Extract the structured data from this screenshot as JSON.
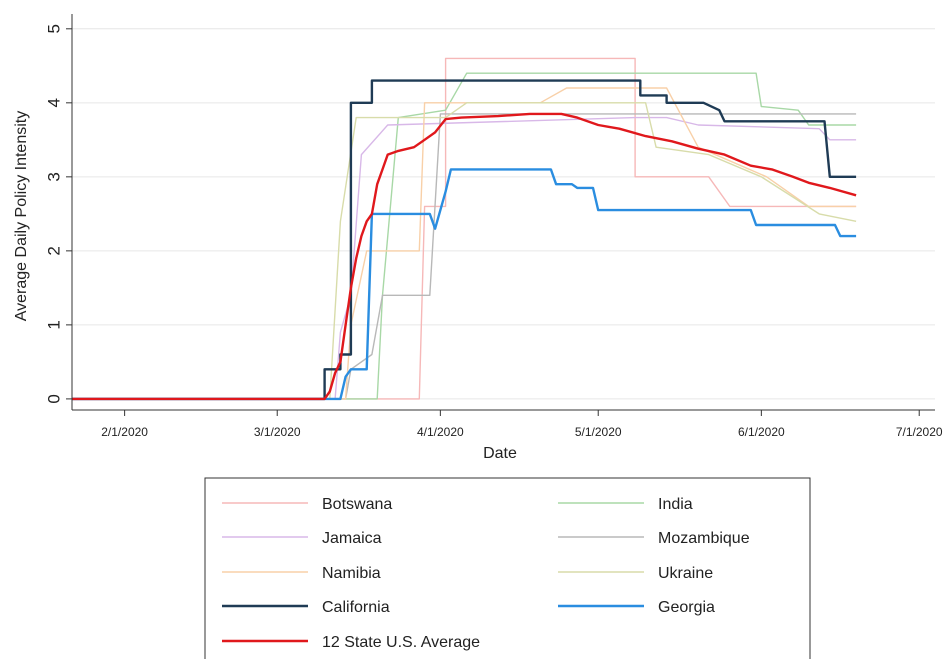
{
  "chart_data": {
    "type": "line",
    "title": "",
    "xlabel": "Date",
    "ylabel": "Average Daily Policy Intensity",
    "x_ticks": [
      "2/1/2020",
      "3/1/2020",
      "4/1/2020",
      "5/1/2020",
      "6/1/2020",
      "7/1/2020"
    ],
    "y_ticks": [
      "0",
      "1",
      "2",
      "3",
      "4",
      "5"
    ],
    "xlim": [
      "2020-01-22",
      "2020-07-04"
    ],
    "ylim": [
      -0.15,
      5.2
    ],
    "grid": "horizontal",
    "legend_position": "bottom",
    "series": [
      {
        "name": "Botswana",
        "color": "#f6b8b8",
        "width": 1.4,
        "points": [
          [
            "2020-01-22",
            0
          ],
          [
            "2020-03-28",
            0
          ],
          [
            "2020-03-29",
            2.6
          ],
          [
            "2020-04-02",
            2.6
          ],
          [
            "2020-04-02",
            4.6
          ],
          [
            "2020-05-08",
            4.6
          ],
          [
            "2020-05-08",
            3.0
          ],
          [
            "2020-05-22",
            3.0
          ],
          [
            "2020-05-26",
            2.6
          ],
          [
            "2020-06-19",
            2.6
          ]
        ]
      },
      {
        "name": "India",
        "color": "#a8d8a6",
        "width": 1.4,
        "points": [
          [
            "2020-01-22",
            0
          ],
          [
            "2020-03-20",
            0
          ],
          [
            "2020-03-21",
            1.4
          ],
          [
            "2020-03-24",
            3.8
          ],
          [
            "2020-04-02",
            3.9
          ],
          [
            "2020-04-06",
            4.4
          ],
          [
            "2020-05-31",
            4.4
          ],
          [
            "2020-06-01",
            3.95
          ],
          [
            "2020-06-08",
            3.9
          ],
          [
            "2020-06-10",
            3.7
          ],
          [
            "2020-06-19",
            3.7
          ]
        ]
      },
      {
        "name": "Jamaica",
        "color": "#d8b8e8",
        "width": 1.4,
        "points": [
          [
            "2020-01-22",
            0
          ],
          [
            "2020-03-12",
            0
          ],
          [
            "2020-03-13",
            0.9
          ],
          [
            "2020-03-15",
            1.4
          ],
          [
            "2020-03-17",
            3.3
          ],
          [
            "2020-03-22",
            3.7
          ],
          [
            "2020-05-08",
            3.8
          ],
          [
            "2020-05-14",
            3.8
          ],
          [
            "2020-05-20",
            3.7
          ],
          [
            "2020-06-12",
            3.65
          ],
          [
            "2020-06-14",
            3.5
          ],
          [
            "2020-06-19",
            3.5
          ]
        ]
      },
      {
        "name": "Mozambique",
        "color": "#b8b8b8",
        "width": 1.4,
        "points": [
          [
            "2020-01-22",
            0
          ],
          [
            "2020-03-14",
            0
          ],
          [
            "2020-03-15",
            0.4
          ],
          [
            "2020-03-19",
            0.6
          ],
          [
            "2020-03-21",
            1.4
          ],
          [
            "2020-03-30",
            1.4
          ],
          [
            "2020-04-01",
            3.85
          ],
          [
            "2020-06-19",
            3.85
          ]
        ]
      },
      {
        "name": "Namibia",
        "color": "#f8d0a8",
        "width": 1.4,
        "points": [
          [
            "2020-01-22",
            0
          ],
          [
            "2020-03-14",
            0
          ],
          [
            "2020-03-15",
            1.0
          ],
          [
            "2020-03-18",
            2.0
          ],
          [
            "2020-03-28",
            2.0
          ],
          [
            "2020-03-29",
            4.0
          ],
          [
            "2020-04-20",
            4.0
          ],
          [
            "2020-04-25",
            4.2
          ],
          [
            "2020-05-14",
            4.2
          ],
          [
            "2020-05-20",
            3.4
          ],
          [
            "2020-06-02",
            3.0
          ],
          [
            "2020-06-10",
            2.6
          ],
          [
            "2020-06-19",
            2.6
          ]
        ]
      },
      {
        "name": "Ukraine",
        "color": "#d8dcaa",
        "width": 1.4,
        "points": [
          [
            "2020-01-22",
            0
          ],
          [
            "2020-03-11",
            0
          ],
          [
            "2020-03-13",
            2.4
          ],
          [
            "2020-03-16",
            3.8
          ],
          [
            "2020-04-02",
            3.8
          ],
          [
            "2020-04-06",
            4.0
          ],
          [
            "2020-05-10",
            4.0
          ],
          [
            "2020-05-12",
            3.4
          ],
          [
            "2020-05-22",
            3.3
          ],
          [
            "2020-06-01",
            3.0
          ],
          [
            "2020-06-12",
            2.5
          ],
          [
            "2020-06-19",
            2.4
          ]
        ]
      },
      {
        "name": "California",
        "color": "#1f3b55",
        "width": 2.4,
        "points": [
          [
            "2020-01-22",
            0
          ],
          [
            "2020-03-10",
            0
          ],
          [
            "2020-03-10",
            0.4
          ],
          [
            "2020-03-13",
            0.4
          ],
          [
            "2020-03-13",
            0.6
          ],
          [
            "2020-03-15",
            0.6
          ],
          [
            "2020-03-15",
            4.0
          ],
          [
            "2020-03-19",
            4.0
          ],
          [
            "2020-03-19",
            4.3
          ],
          [
            "2020-05-09",
            4.3
          ],
          [
            "2020-05-09",
            4.1
          ],
          [
            "2020-05-14",
            4.1
          ],
          [
            "2020-05-14",
            4.0
          ],
          [
            "2020-05-21",
            4.0
          ],
          [
            "2020-05-24",
            3.9
          ],
          [
            "2020-05-25",
            3.75
          ],
          [
            "2020-06-13",
            3.75
          ],
          [
            "2020-06-14",
            3.0
          ],
          [
            "2020-06-19",
            3.0
          ]
        ]
      },
      {
        "name": "Georgia",
        "color": "#2a8de0",
        "width": 2.4,
        "points": [
          [
            "2020-01-22",
            0
          ],
          [
            "2020-03-13",
            0
          ],
          [
            "2020-03-14",
            0.3
          ],
          [
            "2020-03-15",
            0.4
          ],
          [
            "2020-03-18",
            0.4
          ],
          [
            "2020-03-19",
            2.5
          ],
          [
            "2020-03-30",
            2.5
          ],
          [
            "2020-03-31",
            2.3
          ],
          [
            "2020-04-02",
            2.8
          ],
          [
            "2020-04-03",
            3.1
          ],
          [
            "2020-04-22",
            3.1
          ],
          [
            "2020-04-23",
            2.9
          ],
          [
            "2020-04-26",
            2.9
          ],
          [
            "2020-04-27",
            2.85
          ],
          [
            "2020-04-30",
            2.85
          ],
          [
            "2020-05-01",
            2.55
          ],
          [
            "2020-05-30",
            2.55
          ],
          [
            "2020-05-31",
            2.35
          ],
          [
            "2020-06-15",
            2.35
          ],
          [
            "2020-06-16",
            2.2
          ],
          [
            "2020-06-19",
            2.2
          ]
        ]
      },
      {
        "name": "12 State U.S. Average",
        "color": "#e0181c",
        "width": 2.4,
        "points": [
          [
            "2020-01-22",
            0
          ],
          [
            "2020-03-10",
            0
          ],
          [
            "2020-03-11",
            0.1
          ],
          [
            "2020-03-12",
            0.35
          ],
          [
            "2020-03-13",
            0.5
          ],
          [
            "2020-03-14",
            1.0
          ],
          [
            "2020-03-15",
            1.5
          ],
          [
            "2020-03-16",
            1.9
          ],
          [
            "2020-03-17",
            2.2
          ],
          [
            "2020-03-18",
            2.4
          ],
          [
            "2020-03-19",
            2.5
          ],
          [
            "2020-03-20",
            2.9
          ],
          [
            "2020-03-21",
            3.1
          ],
          [
            "2020-03-22",
            3.3
          ],
          [
            "2020-03-24",
            3.35
          ],
          [
            "2020-03-27",
            3.4
          ],
          [
            "2020-03-29",
            3.5
          ],
          [
            "2020-03-31",
            3.6
          ],
          [
            "2020-04-02",
            3.78
          ],
          [
            "2020-04-05",
            3.8
          ],
          [
            "2020-04-12",
            3.82
          ],
          [
            "2020-04-18",
            3.85
          ],
          [
            "2020-04-24",
            3.85
          ],
          [
            "2020-04-27",
            3.8
          ],
          [
            "2020-05-01",
            3.7
          ],
          [
            "2020-05-05",
            3.65
          ],
          [
            "2020-05-10",
            3.55
          ],
          [
            "2020-05-15",
            3.48
          ],
          [
            "2020-05-20",
            3.38
          ],
          [
            "2020-05-25",
            3.3
          ],
          [
            "2020-05-30",
            3.15
          ],
          [
            "2020-06-03",
            3.1
          ],
          [
            "2020-06-07",
            3.0
          ],
          [
            "2020-06-10",
            2.92
          ],
          [
            "2020-06-14",
            2.85
          ],
          [
            "2020-06-19",
            2.75
          ]
        ]
      }
    ],
    "legend": [
      {
        "name": "Botswana",
        "color": "#f6b8b8"
      },
      {
        "name": "India",
        "color": "#a8d8a6"
      },
      {
        "name": "Jamaica",
        "color": "#d8b8e8"
      },
      {
        "name": "Mozambique",
        "color": "#b8b8b8"
      },
      {
        "name": "Namibia",
        "color": "#f8d0a8"
      },
      {
        "name": "Ukraine",
        "color": "#d8dcaa"
      },
      {
        "name": "California",
        "color": "#1f3b55"
      },
      {
        "name": "Georgia",
        "color": "#2a8de0"
      },
      {
        "name": "12 State U.S. Average",
        "color": "#e0181c"
      }
    ]
  }
}
